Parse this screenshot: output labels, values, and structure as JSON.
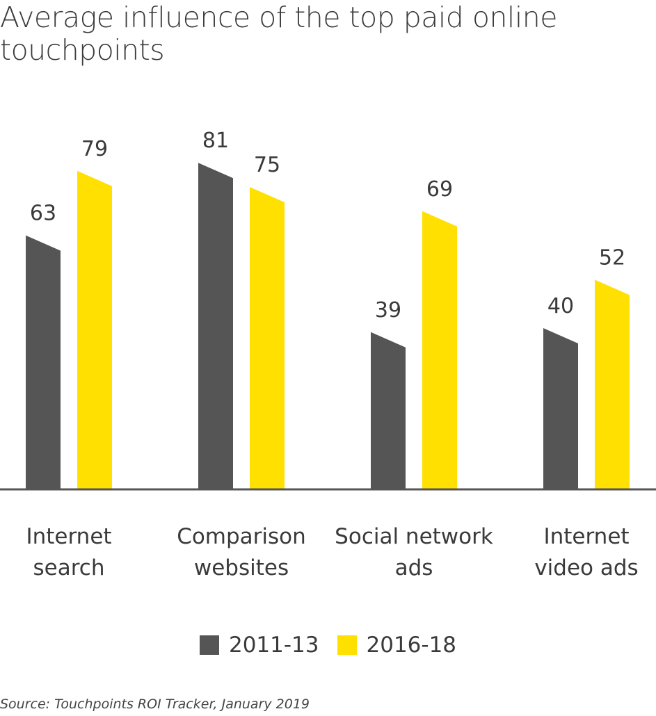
{
  "chart_data": {
    "type": "bar",
    "title": "Average influence of the top paid online touchpoints",
    "categories": [
      [
        "Internet",
        "search"
      ],
      [
        "Comparison",
        "websites"
      ],
      [
        "Social network",
        "ads"
      ],
      [
        "Internet",
        "video ads"
      ]
    ],
    "series": [
      {
        "name": "2011-13",
        "color": "#555555",
        "values": [
          63,
          81,
          39,
          40
        ]
      },
      {
        "name": "2016-18",
        "color": "#FFE000",
        "values": [
          79,
          75,
          69,
          52
        ]
      }
    ],
    "ylim": [
      0,
      90
    ],
    "xlabel": "",
    "ylabel": "",
    "legend_position": "bottom",
    "grid": false
  },
  "source": "Source: Touchpoints ROI Tracker, January 2019"
}
